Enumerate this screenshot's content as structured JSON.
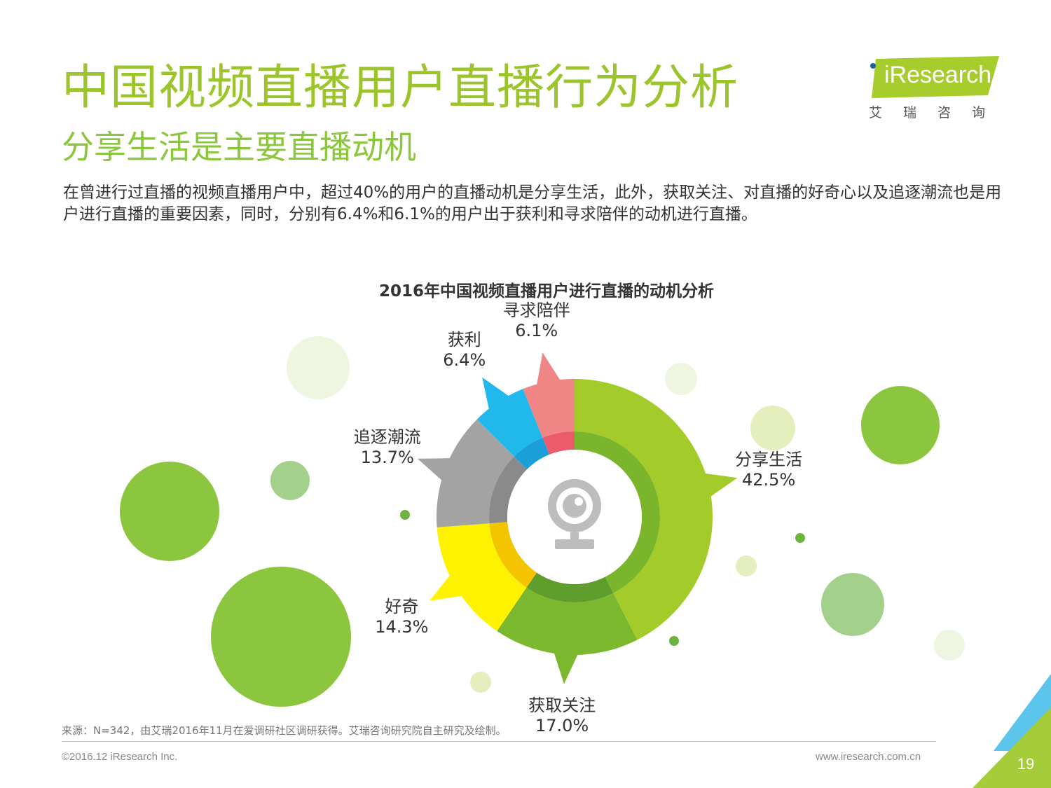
{
  "header": {
    "title": "中国视频直播用户直播行为分析",
    "subtitle": "分享生活是主要直播动机",
    "description": "在曾进行过直播的视频直播用户中，超过40%的用户的直播动机是分享生活，此外，获取关注、对直播的好奇心以及追逐潮流也是用户进行直播的重要因素，同时，分别有6.4%和6.1%的用户出于获利和寻求陪伴的动机进行直播。"
  },
  "logo": {
    "brand": "iResearch",
    "chinese": "艾瑞咨询"
  },
  "chart_data": {
    "type": "pie",
    "variant": "donut",
    "title": "2016年中国视频直播用户进行直播的动机分析",
    "slices": [
      {
        "label": "分享生活",
        "value": 42.5,
        "display": "42.5%",
        "color": "#a3cc2a",
        "inner_color": "#7bb52b"
      },
      {
        "label": "获取关注",
        "value": 17.0,
        "display": "17.0%",
        "color": "#7bb82e",
        "inner_color": "#5f9e2c"
      },
      {
        "label": "好奇",
        "value": 14.3,
        "display": "14.3%",
        "color": "#fff200",
        "inner_color": "#f5c400"
      },
      {
        "label": "追逐潮流",
        "value": 13.7,
        "display": "13.7%",
        "color": "#a3a3a3",
        "inner_color": "#8a8a8a"
      },
      {
        "label": "获利",
        "value": 6.4,
        "display": "6.4%",
        "color": "#21b8ec",
        "inner_color": "#1a9fd8"
      },
      {
        "label": "寻求陪伴",
        "value": 6.1,
        "display": "6.1%",
        "color": "#f08585",
        "inner_color": "#ec5b6b"
      }
    ],
    "center_icon": "webcam-icon"
  },
  "footer": {
    "source": "来源：N=342，由艾瑞2016年11月在爱调研社区调研获得。艾瑞咨询研究院自主研究及绘制。",
    "copyright": "©2016.12 iResearch Inc.",
    "website": "www.iresearch.com.cn",
    "page": "19"
  },
  "colors": {
    "title_green": "#9bc52b",
    "subtitle_green": "#8cc63f",
    "corner_blue": "#5bc5ec",
    "corner_green": "#a5cd39"
  }
}
